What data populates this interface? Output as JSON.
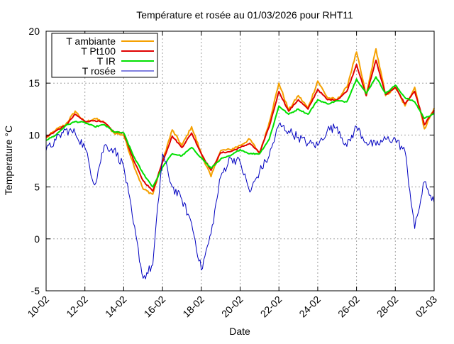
{
  "chart_data": {
    "type": "line",
    "title": "Température et rosée au 01/03/2026 pour RHT11",
    "xlabel": "Date",
    "ylabel": "Temperature °C",
    "x_unit": "day",
    "x_tick_labels": [
      "10-02",
      "12-02",
      "14-02",
      "16-02",
      "18-02",
      "20-02",
      "22-02",
      "24-02",
      "26-02",
      "28-02",
      "02-03"
    ],
    "xlim": [
      "2026-02-10",
      "2026-03-02"
    ],
    "ylim": [
      -5,
      20
    ],
    "y_ticks": [
      -5,
      0,
      5,
      10,
      15,
      20
    ],
    "grid": true,
    "legend_position": "top-left",
    "series": [
      {
        "name": "T ambiante",
        "color": "#f5a000",
        "x": [
          "2026-02-10",
          "2026-02-10 12:00",
          "2026-02-11",
          "2026-02-11 12:00",
          "2026-02-12",
          "2026-02-12 12:00",
          "2026-02-13",
          "2026-02-13 12:00",
          "2026-02-14",
          "2026-02-14 12:00",
          "2026-02-15",
          "2026-02-15 12:00",
          "2026-02-16",
          "2026-02-16 12:00",
          "2026-02-17",
          "2026-02-17 12:00",
          "2026-02-18",
          "2026-02-18 12:00",
          "2026-02-19",
          "2026-02-19 12:00",
          "2026-02-20",
          "2026-02-20 12:00",
          "2026-02-21",
          "2026-02-21 12:00",
          "2026-02-22",
          "2026-02-22 12:00",
          "2026-02-23",
          "2026-02-23 12:00",
          "2026-02-24",
          "2026-02-24 12:00",
          "2026-02-25",
          "2026-02-25 12:00",
          "2026-02-26",
          "2026-02-26 12:00",
          "2026-02-27",
          "2026-02-27 12:00",
          "2026-02-28",
          "2026-02-28 12:00",
          "2026-03-01",
          "2026-03-01 12:00",
          "2026-03-02"
        ],
        "values": [
          9.7,
          10.5,
          11.0,
          12.3,
          11.2,
          11.6,
          11.2,
          10.2,
          10.0,
          7.2,
          4.8,
          4.3,
          7.5,
          10.5,
          9.0,
          10.8,
          8.2,
          6.0,
          8.5,
          8.6,
          9.0,
          9.6,
          8.2,
          11.2,
          15.0,
          12.4,
          13.8,
          12.6,
          15.2,
          13.6,
          13.4,
          14.6,
          18.0,
          13.8,
          18.3,
          13.8,
          14.6,
          12.8,
          14.6,
          10.6,
          12.6
        ]
      },
      {
        "name": "T Pt100",
        "color": "#e00000",
        "x": [
          "2026-02-10",
          "2026-02-10 12:00",
          "2026-02-11",
          "2026-02-11 12:00",
          "2026-02-12",
          "2026-02-12 12:00",
          "2026-02-13",
          "2026-02-13 12:00",
          "2026-02-14",
          "2026-02-14 12:00",
          "2026-02-15",
          "2026-02-15 12:00",
          "2026-02-16",
          "2026-02-16 12:00",
          "2026-02-17",
          "2026-02-17 12:00",
          "2026-02-18",
          "2026-02-18 12:00",
          "2026-02-19",
          "2026-02-19 12:00",
          "2026-02-20",
          "2026-02-20 12:00",
          "2026-02-21",
          "2026-02-21 12:00",
          "2026-02-22",
          "2026-02-22 12:00",
          "2026-02-23",
          "2026-02-23 12:00",
          "2026-02-24",
          "2026-02-24 12:00",
          "2026-02-25",
          "2026-02-25 12:00",
          "2026-02-26",
          "2026-02-26 12:00",
          "2026-02-27",
          "2026-02-27 12:00",
          "2026-02-28",
          "2026-02-28 12:00",
          "2026-03-01",
          "2026-03-01 12:00",
          "2026-03-02"
        ],
        "values": [
          9.8,
          10.4,
          10.9,
          12.0,
          11.3,
          11.4,
          11.2,
          10.3,
          10.2,
          7.6,
          5.6,
          4.6,
          7.4,
          9.9,
          8.8,
          10.2,
          8.2,
          6.6,
          8.3,
          8.4,
          8.8,
          9.2,
          8.3,
          10.8,
          14.2,
          12.3,
          13.4,
          12.5,
          14.4,
          13.4,
          13.4,
          14.2,
          16.8,
          13.8,
          17.2,
          13.9,
          14.6,
          13.0,
          14.2,
          11.0,
          12.4
        ]
      },
      {
        "name": "T IR",
        "color": "#00e000",
        "x": [
          "2026-02-10",
          "2026-02-10 12:00",
          "2026-02-11",
          "2026-02-11 12:00",
          "2026-02-12",
          "2026-02-12 12:00",
          "2026-02-13",
          "2026-02-13 12:00",
          "2026-02-14",
          "2026-02-14 12:00",
          "2026-02-15",
          "2026-02-15 12:00",
          "2026-02-16",
          "2026-02-16 12:00",
          "2026-02-17",
          "2026-02-17 12:00",
          "2026-02-18",
          "2026-02-18 12:00",
          "2026-02-19",
          "2026-02-19 12:00",
          "2026-02-20",
          "2026-02-20 12:00",
          "2026-02-21",
          "2026-02-21 12:00",
          "2026-02-22",
          "2026-02-22 12:00",
          "2026-02-23",
          "2026-02-23 12:00",
          "2026-02-24",
          "2026-02-24 12:00",
          "2026-02-25",
          "2026-02-25 12:00",
          "2026-02-26",
          "2026-02-26 12:00",
          "2026-02-27",
          "2026-02-27 12:00",
          "2026-02-28",
          "2026-02-28 12:00",
          "2026-03-01",
          "2026-03-01 12:00",
          "2026-03-02"
        ],
        "values": [
          9.5,
          10.0,
          10.9,
          11.3,
          11.2,
          10.8,
          11.0,
          10.3,
          10.2,
          8.0,
          6.3,
          5.0,
          6.9,
          8.2,
          8.0,
          8.8,
          7.8,
          6.8,
          7.7,
          8.0,
          8.6,
          8.2,
          8.2,
          9.6,
          12.8,
          12.0,
          12.5,
          12.0,
          13.4,
          13.0,
          13.3,
          13.2,
          15.4,
          14.0,
          15.6,
          14.0,
          14.8,
          13.6,
          13.2,
          11.6,
          12.1
        ]
      },
      {
        "name": "T rosée",
        "color": "#0000c0",
        "x": [
          "2026-02-10",
          "2026-02-10 12:00",
          "2026-02-11",
          "2026-02-11 12:00",
          "2026-02-12",
          "2026-02-12 12:00",
          "2026-02-13",
          "2026-02-13 12:00",
          "2026-02-14",
          "2026-02-14 12:00",
          "2026-02-15",
          "2026-02-15 12:00",
          "2026-02-16",
          "2026-02-16 12:00",
          "2026-02-17",
          "2026-02-17 12:00",
          "2026-02-18",
          "2026-02-18 12:00",
          "2026-02-19",
          "2026-02-19 12:00",
          "2026-02-20",
          "2026-02-20 12:00",
          "2026-02-21",
          "2026-02-21 12:00",
          "2026-02-22",
          "2026-02-22 12:00",
          "2026-02-23",
          "2026-02-23 12:00",
          "2026-02-24",
          "2026-02-24 12:00",
          "2026-02-25",
          "2026-02-25 12:00",
          "2026-02-26",
          "2026-02-26 12:00",
          "2026-02-27",
          "2026-02-27 12:00",
          "2026-02-28",
          "2026-02-28 12:00",
          "2026-03-01",
          "2026-03-01 12:00",
          "2026-03-02"
        ],
        "values": [
          8.5,
          9.5,
          10.5,
          10.2,
          8.8,
          5.2,
          9.0,
          8.6,
          7.0,
          1.5,
          -3.8,
          -2.5,
          8.2,
          5.0,
          3.8,
          1.5,
          -3.0,
          0.5,
          6.0,
          7.8,
          7.4,
          4.5,
          6.5,
          8.0,
          11.0,
          10.4,
          9.8,
          9.2,
          9.0,
          10.5,
          10.8,
          8.9,
          10.8,
          9.3,
          9.0,
          9.6,
          9.6,
          8.4,
          1.0,
          5.5,
          3.5
        ]
      }
    ]
  }
}
